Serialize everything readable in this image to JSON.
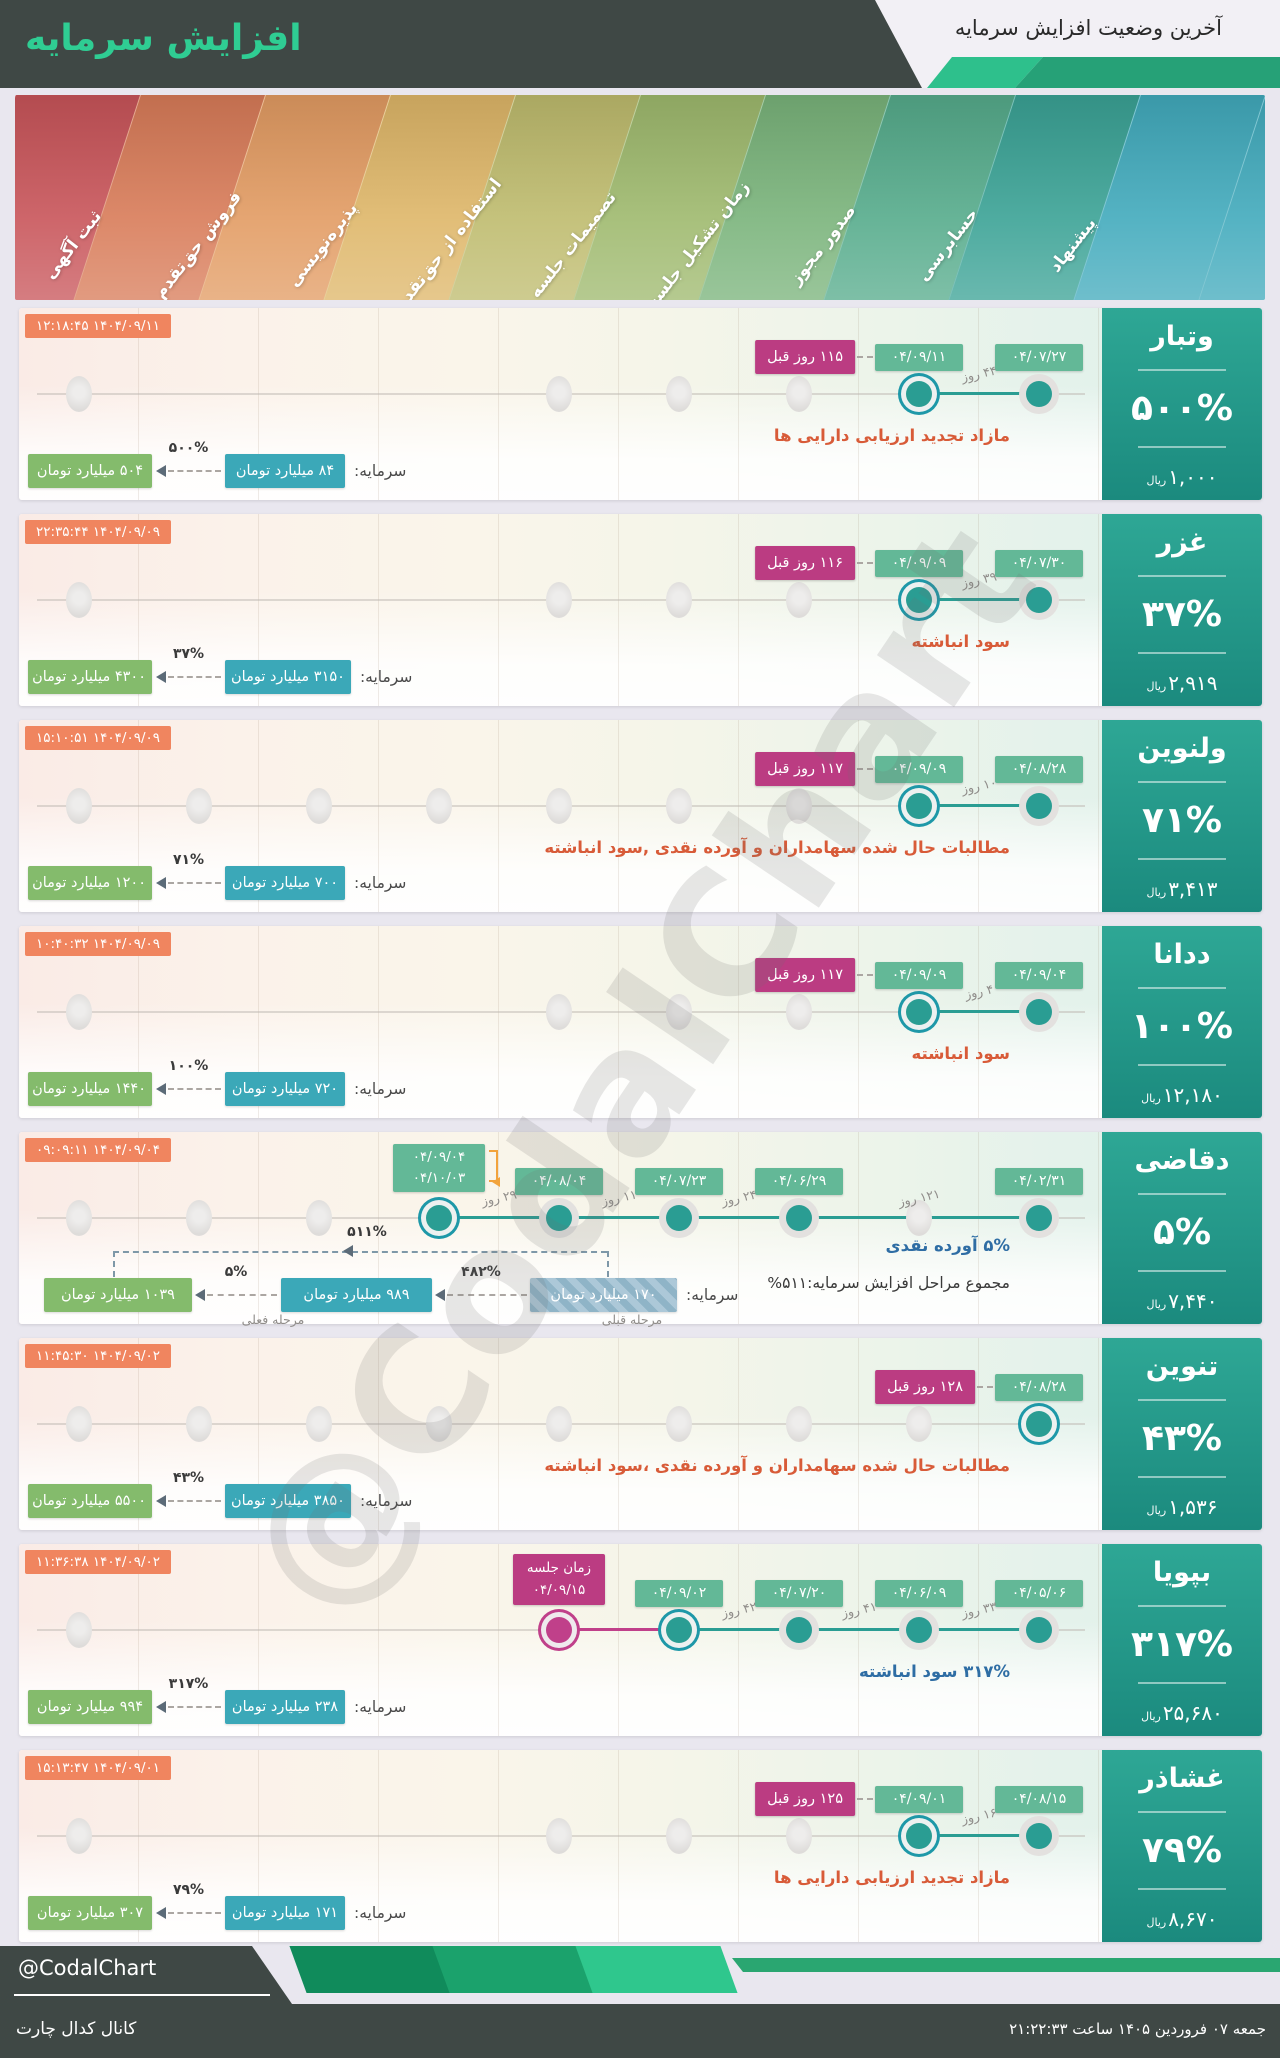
{
  "header": {
    "top_title": "آخرین وضعیت افزایش سرمایه",
    "main_title": "افزایش سرمایه"
  },
  "stages": [
    "ثبت آگهی",
    "فروش حق‌تقدم",
    "پذیره‌نویسی",
    "استفاده از حق‌تقدم",
    "تصمیمات جلسه",
    "زمان تشکیل جلسه",
    "صدور مجوز",
    "حسابرسی",
    "پیشنهاد"
  ],
  "stage_colors": [
    "#C85459",
    "#D87B58",
    "#E29B62",
    "#DEB668",
    "#BEBB6D",
    "#9EB96D",
    "#79B37A",
    "#55AB8B",
    "#3AA295",
    "#41AABC"
  ],
  "watermark": "@CodalChart",
  "colors": {
    "header_dark": "#3F4845",
    "accent_green": "#2FCD93",
    "ribbon_light": "#2EC08C",
    "ribbon_dark": "#26A177",
    "timestamp_badge": "#F0855F",
    "date_badge": "#63B897",
    "days_ago_badge": "#BB3C82",
    "dot_teal": "#2A9D93",
    "dot_ring": "#1E98A8",
    "meeting_pink": "#C0408A",
    "capital_teal": "#3BA8B8",
    "capital_green": "#84BB6C",
    "red_text": "#D85B38",
    "blue_text": "#2E6DA4",
    "panel_top": "#2EA795",
    "panel_bottom": "#1B8A7E"
  },
  "rows": [
    {
      "name": "وتبار",
      "percent": "۵۰۰%",
      "price": "۱,۰۰۰",
      "price_unit": "ریال",
      "timestamp": "۱۴۰۴/۰۹/۱۱ ۱۲:۱۸:۴۵",
      "dates": [
        {
          "col": 8,
          "label": "۰۴/۰۹/۱۱"
        },
        {
          "col": 9,
          "label": "۰۴/۰۷/۲۷"
        }
      ],
      "days_ago": {
        "col": 8,
        "label": "۱۱۵ روز قبل"
      },
      "gaps": [
        {
          "a": 8,
          "b": 9,
          "label": "۴۴ روز"
        }
      ],
      "dots_gray": [
        1,
        5,
        6,
        7
      ],
      "dots_active": [
        9
      ],
      "dot_current": 8,
      "segments": [
        {
          "a": 8,
          "b": 9,
          "style": "teal"
        }
      ],
      "description": {
        "text": "مازاد تجدید ارزیابی دارایی ها",
        "style": "red"
      },
      "capital": {
        "label": "سرمایه:",
        "current": "۸۴ میلیارد تومان",
        "percent": "۵۰۰%",
        "new": "۵۰۴ میلیارد تومان"
      }
    },
    {
      "name": "غزر",
      "percent": "۳۷%",
      "price": "۲,۹۱۹",
      "price_unit": "ریال",
      "timestamp": "۱۴۰۴/۰۹/۰۹ ۲۲:۳۵:۴۴",
      "dates": [
        {
          "col": 8,
          "label": "۰۴/۰۹/۰۹"
        },
        {
          "col": 9,
          "label": "۰۴/۰۷/۳۰"
        }
      ],
      "days_ago": {
        "col": 8,
        "label": "۱۱۶ روز قبل"
      },
      "gaps": [
        {
          "a": 8,
          "b": 9,
          "label": "۳۹ روز"
        }
      ],
      "dots_gray": [
        1,
        5,
        6,
        7
      ],
      "dots_active": [
        9
      ],
      "dot_current": 8,
      "segments": [
        {
          "a": 8,
          "b": 9,
          "style": "teal"
        }
      ],
      "description": {
        "text": "سود انباشته",
        "style": "red"
      },
      "capital": {
        "label": "سرمایه:",
        "current": "۳۱۵۰ میلیارد تومان",
        "percent": "۳۷%",
        "new": "۴۳۰۰ میلیارد تومان"
      }
    },
    {
      "name": "ولنوین",
      "percent": "۷۱%",
      "price": "۳,۴۱۳",
      "price_unit": "ریال",
      "timestamp": "۱۴۰۴/۰۹/۰۹ ۱۵:۱۰:۵۱",
      "dates": [
        {
          "col": 8,
          "label": "۰۴/۰۹/۰۹"
        },
        {
          "col": 9,
          "label": "۰۴/۰۸/۲۸"
        }
      ],
      "days_ago": {
        "col": 8,
        "label": "۱۱۷ روز قبل"
      },
      "gaps": [
        {
          "a": 8,
          "b": 9,
          "label": "۱۰ روز"
        }
      ],
      "dots_gray": [
        1,
        2,
        3,
        4,
        5,
        6,
        7
      ],
      "dots_active": [
        9
      ],
      "dot_current": 8,
      "segments": [
        {
          "a": 8,
          "b": 9,
          "style": "teal"
        }
      ],
      "description": {
        "text": "مطالبات حال شده سهامداران و آورده نقدی ,سود انباشته",
        "style": "red"
      },
      "capital": {
        "label": "سرمایه:",
        "current": "۷۰۰ میلیارد تومان",
        "percent": "۷۱%",
        "new": "۱۲۰۰ میلیارد تومان"
      }
    },
    {
      "name": "ددانا",
      "percent": "۱۰۰%",
      "price": "۱۲,۱۸۰",
      "price_unit": "ریال",
      "timestamp": "۱۴۰۴/۰۹/۰۹ ۱۰:۴۰:۳۲",
      "dates": [
        {
          "col": 8,
          "label": "۰۴/۰۹/۰۹"
        },
        {
          "col": 9,
          "label": "۰۴/۰۹/۰۴"
        }
      ],
      "days_ago": {
        "col": 8,
        "label": "۱۱۷ روز قبل"
      },
      "gaps": [
        {
          "a": 8,
          "b": 9,
          "label": "۴ روز"
        }
      ],
      "dots_gray": [
        1,
        5,
        6,
        7
      ],
      "dots_active": [
        9
      ],
      "dot_current": 8,
      "segments": [
        {
          "a": 8,
          "b": 9,
          "style": "teal"
        }
      ],
      "description": {
        "text": "سود انباشته",
        "style": "red"
      },
      "capital": {
        "label": "سرمایه:",
        "current": "۷۲۰ میلیارد تومان",
        "percent": "۱۰۰%",
        "new": "۱۴۴۰ میلیارد تومان"
      }
    },
    {
      "name": "دقاضی",
      "percent": "۵%",
      "price": "۷,۴۴۰",
      "price_unit": "ریال",
      "timestamp": "۱۴۰۴/۰۹/۰۴ ۰۹:۰۹:۱۱",
      "stacked_date": {
        "col": 4,
        "lines": [
          "۰۴/۰۹/۰۴",
          "۰۴/۱۰/۰۳"
        ]
      },
      "dates": [
        {
          "col": 5,
          "label": "۰۴/۰۸/۰۴"
        },
        {
          "col": 6,
          "label": "۰۴/۰۷/۲۳"
        },
        {
          "col": 7,
          "label": "۰۴/۰۶/۲۹"
        },
        {
          "col": 9,
          "label": "۰۴/۰۲/۳۱"
        }
      ],
      "gaps": [
        {
          "a": 4,
          "b": 5,
          "label": "۲۹ روز"
        },
        {
          "a": 5,
          "b": 6,
          "label": "۱۱ روز"
        },
        {
          "a": 6,
          "b": 7,
          "label": "۲۴ روز"
        },
        {
          "a": 7,
          "b": 9,
          "label": "۱۲۱ روز"
        }
      ],
      "dots_gray": [
        1,
        2,
        3,
        8
      ],
      "dots_active": [
        5,
        6,
        7,
        9
      ],
      "dot_current": 4,
      "segments": [
        {
          "a": 4,
          "b": 9,
          "style": "teal"
        }
      ],
      "description": {
        "text": "۵% آورده نقدی",
        "style": "blue"
      },
      "note": "مجموع مراحل افزایش سرمایه:۵۱۱%",
      "capital_multi": {
        "label": "سرمایه:",
        "orig": "۱۷۰ میلیارد تومان",
        "prev_percent": "۴۸۲%",
        "prev_stage_label": "مرحله قبلی",
        "prev": "۹۸۹ میلیارد تومان",
        "current_percent": "۵%",
        "current_stage_label": "مرحله فعلی",
        "new": "۱۰۳۹ میلیارد تومان",
        "total_percent": "۵۱۱%"
      }
    },
    {
      "name": "تنوین",
      "percent": "۴۳%",
      "price": "۱,۵۳۶",
      "price_unit": "ریال",
      "timestamp": "۱۴۰۴/۰۹/۰۲ ۱۱:۴۵:۳۰",
      "dates": [
        {
          "col": 9,
          "label": "۰۴/۰۸/۲۸"
        }
      ],
      "days_ago": {
        "col": 9,
        "label": "۱۲۸ روز قبل"
      },
      "gaps": [],
      "dots_gray": [
        1,
        2,
        3,
        4,
        5,
        6,
        7,
        8
      ],
      "dots_active": [],
      "dot_current": 9,
      "segments": [],
      "description": {
        "text": "مطالبات حال شده سهامداران و آورده نقدی ،سود انباشته",
        "style": "red"
      },
      "capital": {
        "label": "سرمایه:",
        "current": "۳۸۵۰ میلیارد تومان",
        "percent": "۴۳%",
        "new": "۵۵۰۰ میلیارد تومان"
      }
    },
    {
      "name": "بپویا",
      "percent": "۳۱۷%",
      "price": "۲۵,۶۸۰",
      "price_unit": "ریال",
      "timestamp": "۱۴۰۴/۰۹/۰۲ ۱۱:۳۶:۳۸",
      "meeting": {
        "col": 5,
        "line1": "زمان جلسه",
        "line2": "۰۴/۰۹/۱۵"
      },
      "dates": [
        {
          "col": 6,
          "label": "۰۴/۰۹/۰۲"
        },
        {
          "col": 7,
          "label": "۰۴/۰۷/۲۰"
        },
        {
          "col": 8,
          "label": "۰۴/۰۶/۰۹"
        },
        {
          "col": 9,
          "label": "۰۴/۰۵/۰۶"
        }
      ],
      "gaps": [
        {
          "a": 6,
          "b": 7,
          "label": "۴۲ روز"
        },
        {
          "a": 7,
          "b": 8,
          "label": "۴۱ روز"
        },
        {
          "a": 8,
          "b": 9,
          "label": "۳۳ روز"
        }
      ],
      "dots_gray": [
        1
      ],
      "dots_active": [
        7,
        8,
        9
      ],
      "dot_current": 6,
      "dot_meeting": 5,
      "segments": [
        {
          "a": 5,
          "b": 6,
          "style": "pink"
        },
        {
          "a": 6,
          "b": 9,
          "style": "teal"
        }
      ],
      "description": {
        "text": "۳۱۷% سود انباشته",
        "style": "blue"
      },
      "capital": {
        "label": "سرمایه:",
        "current": "۲۳۸ میلیارد تومان",
        "percent": "۳۱۷%",
        "new": "۹۹۴ میلیارد تومان"
      }
    },
    {
      "name": "غشاذر",
      "percent": "۷۹%",
      "price": "۸,۶۷۰",
      "price_unit": "ریال",
      "timestamp": "۱۴۰۴/۰۹/۰۱ ۱۵:۱۳:۴۷",
      "dates": [
        {
          "col": 8,
          "label": "۰۴/۰۹/۰۱"
        },
        {
          "col": 9,
          "label": "۰۴/۰۸/۱۵"
        }
      ],
      "days_ago": {
        "col": 8,
        "label": "۱۲۵ روز قبل"
      },
      "gaps": [
        {
          "a": 8,
          "b": 9,
          "label": "۱۶ روز"
        }
      ],
      "dots_gray": [
        1,
        5,
        6,
        7
      ],
      "dots_active": [
        9
      ],
      "dot_current": 8,
      "segments": [
        {
          "a": 8,
          "b": 9,
          "style": "teal"
        }
      ],
      "description": {
        "text": "مازاد تجدید ارزیابی دارایی ها",
        "style": "red"
      },
      "capital": {
        "label": "سرمایه:",
        "current": "۱۷۱ میلیارد تومان",
        "percent": "۷۹%",
        "new": "۳۰۷ میلیارد تومان"
      }
    }
  ],
  "chart_data": {
    "type": "table",
    "title": "آخرین وضعیت افزایش سرمایه",
    "stage_axis_right_to_left": [
      "پیشنهاد",
      "حسابرسی",
      "صدور مجوز",
      "زمان تشکیل جلسه",
      "تصمیمات جلسه",
      "استفاده از حق‌تقدم",
      "پذیره‌نویسی",
      "فروش حق‌تقدم",
      "ثبت آگهی"
    ],
    "companies": [
      {
        "symbol": "وتبار",
        "increase_percent": "۵۰۰%",
        "price_rial": "۱,۰۰۰",
        "last_stage": "حسابرسی",
        "last_date": "۰۴/۰۹/۱۱",
        "proposal_date": "۰۴/۰۷/۲۷",
        "capital_before": "۸۴ میلیارد تومان",
        "capital_after": "۵۰۴ میلیارد تومان",
        "source": "مازاد تجدید ارزیابی دارایی ها"
      },
      {
        "symbol": "غزر",
        "increase_percent": "۳۷%",
        "price_rial": "۲,۹۱۹",
        "last_stage": "حسابرسی",
        "last_date": "۰۴/۰۹/۰۹",
        "proposal_date": "۰۴/۰۷/۳۰",
        "capital_before": "۳۱۵۰ میلیارد تومان",
        "capital_after": "۴۳۰۰ میلیارد تومان",
        "source": "سود انباشته"
      },
      {
        "symbol": "ولنوین",
        "increase_percent": "۷۱%",
        "price_rial": "۳,۴۱۳",
        "last_stage": "حسابرسی",
        "last_date": "۰۴/۰۹/۰۹",
        "proposal_date": "۰۴/۰۸/۲۸",
        "capital_before": "۷۰۰ میلیارد تومان",
        "capital_after": "۱۲۰۰ میلیارد تومان",
        "source": "مطالبات حال شده سهامداران و آورده نقدی ,سود انباشته"
      },
      {
        "symbol": "ددانا",
        "increase_percent": "۱۰۰%",
        "price_rial": "۱۲,۱۸۰",
        "last_stage": "حسابرسی",
        "last_date": "۰۴/۰۹/۰۹",
        "proposal_date": "۰۴/۰۹/۰۴",
        "capital_before": "۷۲۰ میلیارد تومان",
        "capital_after": "۱۴۴۰ میلیارد تومان",
        "source": "سود انباشته"
      },
      {
        "symbol": "دقاضی",
        "increase_percent": "۵%",
        "price_rial": "۷,۴۴۰",
        "last_stage": "استفاده از حق‌تقدم",
        "last_date": "۰۴/۱۰/۰۳",
        "proposal_date": "۰۴/۰۲/۳۱",
        "capital_before": "۹۸۹ میلیارد تومان",
        "capital_after": "۱۰۳۹ میلیارد تومان",
        "original_capital": "۱۷۰ میلیارد تومان",
        "total_percent": "۵۱۱%",
        "source": "۵% آورده نقدی"
      },
      {
        "symbol": "تنوین",
        "increase_percent": "۴۳%",
        "price_rial": "۱,۵۳۶",
        "last_stage": "پیشنهاد",
        "last_date": "۰۴/۰۸/۲۸",
        "proposal_date": "۰۴/۰۸/۲۸",
        "capital_before": "۳۸۵۰ میلیارد تومان",
        "capital_after": "۵۵۰۰ میلیارد تومان",
        "source": "مطالبات حال شده سهامداران و آورده نقدی ،سود انباشته"
      },
      {
        "symbol": "بپویا",
        "increase_percent": "۳۱۷%",
        "price_rial": "۲۵,۶۸۰",
        "last_stage": "زمان تشکیل جلسه",
        "last_date": "۰۴/۰۹/۱۵",
        "proposal_date": "۰۴/۰۵/۰۶",
        "capital_before": "۲۳۸ میلیارد تومان",
        "capital_after": "۹۹۴ میلیارد تومان",
        "source": "۳۱۷% سود انباشته"
      },
      {
        "symbol": "غشاذر",
        "increase_percent": "۷۹%",
        "price_rial": "۸,۶۷۰",
        "last_stage": "حسابرسی",
        "last_date": "۰۴/۰۹/۰۱",
        "proposal_date": "۰۴/۰۸/۱۵",
        "capital_before": "۱۷۱ میلیارد تومان",
        "capital_after": "۳۰۷ میلیارد تومان",
        "source": "مازاد تجدید ارزیابی دارایی ها"
      }
    ]
  },
  "footer": {
    "handle": "@CodalChart",
    "channel": "کانال کدال چارت",
    "datetime": "جمعه ۰۷ فروردین ۱۴۰۵ ساعت ۲۱:۲۲:۳۳"
  }
}
